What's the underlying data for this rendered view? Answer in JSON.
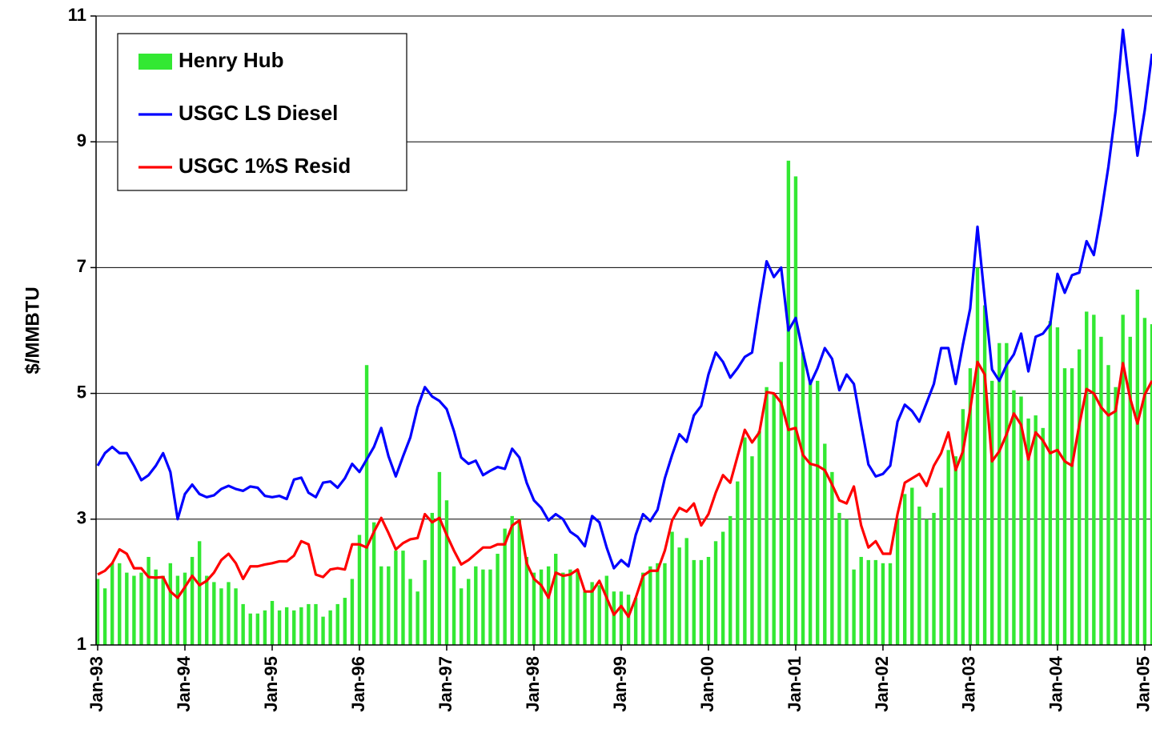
{
  "chart_data": {
    "type": "bar-line",
    "ylabel": "$/MMBTU",
    "legend": "upper left",
    "grid": true,
    "ylim": [
      1,
      11
    ],
    "yticks": [
      1,
      3,
      5,
      7,
      9,
      11
    ],
    "categories": [
      "Jan-93",
      null,
      null,
      null,
      null,
      null,
      null,
      null,
      null,
      null,
      null,
      null,
      "Jan-94",
      null,
      null,
      null,
      null,
      null,
      null,
      null,
      null,
      null,
      null,
      null,
      "Jan-95",
      null,
      null,
      null,
      null,
      null,
      null,
      null,
      null,
      null,
      null,
      null,
      "Jan-96",
      null,
      null,
      null,
      null,
      null,
      null,
      null,
      null,
      null,
      null,
      null,
      "Jan-97",
      null,
      null,
      null,
      null,
      null,
      null,
      null,
      null,
      null,
      null,
      null,
      "Jan-98",
      null,
      null,
      null,
      null,
      null,
      null,
      null,
      null,
      null,
      null,
      null,
      "Jan-99",
      null,
      null,
      null,
      null,
      null,
      null,
      null,
      null,
      null,
      null,
      null,
      "Jan-00",
      null,
      null,
      null,
      null,
      null,
      null,
      null,
      null,
      null,
      null,
      null,
      "Jan-01",
      null,
      null,
      null,
      null,
      null,
      null,
      null,
      null,
      null,
      null,
      null,
      "Jan-02",
      null,
      null,
      null,
      null,
      null,
      null,
      null,
      null,
      null,
      null,
      null,
      "Jan-03",
      null,
      null,
      null,
      null,
      null,
      null,
      null,
      null,
      null,
      null,
      null,
      "Jan-04",
      null,
      null,
      null,
      null,
      null,
      null,
      null,
      null,
      null,
      null,
      null,
      "Jan-05",
      null
    ],
    "series": [
      {
        "name": "Henry Hub",
        "type": "bar",
        "color": "#33e833",
        "values": [
          2.05,
          1.9,
          2.3,
          2.3,
          2.15,
          2.1,
          2.15,
          2.4,
          2.2,
          2.1,
          2.3,
          2.1,
          2.15,
          2.4,
          2.65,
          2.1,
          2.0,
          1.9,
          2.0,
          1.9,
          1.65,
          1.5,
          1.5,
          1.55,
          1.7,
          1.55,
          1.6,
          1.55,
          1.6,
          1.65,
          1.65,
          1.45,
          1.55,
          1.65,
          1.75,
          2.05,
          2.75,
          5.45,
          2.95,
          2.25,
          2.25,
          2.5,
          2.5,
          2.05,
          1.85,
          2.35,
          3.1,
          3.75,
          3.3,
          2.25,
          1.9,
          2.05,
          2.25,
          2.2,
          2.2,
          2.45,
          2.85,
          3.05,
          3.0,
          2.4,
          2.15,
          2.2,
          2.25,
          2.45,
          2.15,
          2.2,
          2.2,
          1.85,
          2.0,
          1.95,
          2.1,
          1.85,
          1.85,
          1.8,
          1.75,
          2.15,
          2.25,
          2.3,
          2.3,
          2.8,
          2.55,
          2.7,
          2.35,
          2.35,
          2.4,
          2.65,
          2.8,
          3.05,
          3.6,
          4.3,
          4.0,
          4.4,
          5.1,
          5.0,
          5.5,
          8.7,
          8.45,
          5.65,
          5.2,
          5.2,
          4.2,
          3.75,
          3.1,
          3.0,
          2.2,
          2.4,
          2.35,
          2.35,
          2.3,
          2.3,
          3.0,
          3.4,
          3.5,
          3.2,
          3.0,
          3.1,
          3.5,
          4.1,
          4.0,
          4.75,
          5.4,
          7.0,
          6.4,
          5.2,
          5.8,
          5.8,
          5.05,
          4.95,
          4.6,
          4.65,
          4.45,
          6.15,
          6.05,
          5.4,
          5.4,
          5.7,
          6.3,
          6.25,
          5.9,
          5.45,
          5.1,
          6.25,
          5.9,
          6.65,
          6.2,
          6.1
        ]
      },
      {
        "name": "USGC LS Diesel",
        "type": "line",
        "color": "#0000ff",
        "values": [
          3.85,
          4.05,
          4.15,
          4.05,
          4.05,
          3.85,
          3.62,
          3.7,
          3.85,
          4.05,
          3.75,
          3.0,
          3.4,
          3.55,
          3.4,
          3.35,
          3.38,
          3.48,
          3.53,
          3.48,
          3.45,
          3.52,
          3.5,
          3.37,
          3.35,
          3.37,
          3.32,
          3.63,
          3.66,
          3.42,
          3.35,
          3.58,
          3.6,
          3.5,
          3.65,
          3.88,
          3.75,
          3.95,
          4.15,
          4.45,
          4.0,
          3.68,
          4.0,
          4.3,
          4.78,
          5.1,
          4.95,
          4.88,
          4.75,
          4.4,
          3.98,
          3.88,
          3.93,
          3.7,
          3.77,
          3.83,
          3.8,
          4.12,
          3.98,
          3.58,
          3.3,
          3.18,
          2.98,
          3.08,
          3.0,
          2.8,
          2.72,
          2.57,
          3.05,
          2.95,
          2.55,
          2.22,
          2.35,
          2.25,
          2.75,
          3.08,
          2.97,
          3.15,
          3.65,
          4.02,
          4.35,
          4.23,
          4.65,
          4.8,
          5.3,
          5.65,
          5.5,
          5.25,
          5.4,
          5.58,
          5.65,
          6.4,
          7.1,
          6.85,
          7.0,
          6.0,
          6.2,
          5.65,
          5.15,
          5.4,
          5.72,
          5.55,
          5.05,
          5.3,
          5.15,
          4.5,
          3.87,
          3.68,
          3.72,
          3.85,
          4.55,
          4.82,
          4.72,
          4.55,
          4.85,
          5.15,
          5.72,
          5.72,
          5.15,
          5.78,
          6.35,
          7.65,
          6.5,
          5.38,
          5.2,
          5.45,
          5.62,
          5.95,
          5.35,
          5.9,
          5.95,
          6.1,
          6.9,
          6.6,
          6.88,
          6.92,
          7.42,
          7.2,
          7.85,
          8.6,
          9.5,
          10.78,
          9.8,
          8.78,
          9.5,
          10.4
        ]
      },
      {
        "name": "USGC 1%S Resid",
        "type": "line",
        "color": "#ff0000",
        "values": [
          2.12,
          2.18,
          2.3,
          2.52,
          2.45,
          2.22,
          2.22,
          2.08,
          2.07,
          2.08,
          1.85,
          1.75,
          1.92,
          2.1,
          1.95,
          2.02,
          2.15,
          2.35,
          2.45,
          2.3,
          2.05,
          2.25,
          2.25,
          2.28,
          2.3,
          2.33,
          2.33,
          2.42,
          2.65,
          2.6,
          2.12,
          2.08,
          2.2,
          2.22,
          2.2,
          2.6,
          2.6,
          2.55,
          2.8,
          3.02,
          2.78,
          2.52,
          2.62,
          2.68,
          2.7,
          3.08,
          2.95,
          3.02,
          2.75,
          2.5,
          2.28,
          2.35,
          2.45,
          2.55,
          2.55,
          2.6,
          2.6,
          2.9,
          2.98,
          2.3,
          2.05,
          1.95,
          1.75,
          2.15,
          2.1,
          2.12,
          2.2,
          1.85,
          1.85,
          2.02,
          1.75,
          1.48,
          1.62,
          1.45,
          1.75,
          2.1,
          2.18,
          2.18,
          2.5,
          2.98,
          3.18,
          3.12,
          3.25,
          2.9,
          3.08,
          3.42,
          3.7,
          3.58,
          4.0,
          4.42,
          4.22,
          4.38,
          5.02,
          5.0,
          4.85,
          4.42,
          4.45,
          4.02,
          3.88,
          3.85,
          3.78,
          3.55,
          3.3,
          3.25,
          3.52,
          2.9,
          2.55,
          2.65,
          2.45,
          2.45,
          3.08,
          3.58,
          3.65,
          3.72,
          3.53,
          3.85,
          4.05,
          4.38,
          3.78,
          4.08,
          4.75,
          5.5,
          5.3,
          3.92,
          4.08,
          4.35,
          4.68,
          4.5,
          3.95,
          4.38,
          4.25,
          4.05,
          4.1,
          3.92,
          3.85,
          4.5,
          5.07,
          5.0,
          4.78,
          4.65,
          4.72,
          5.48,
          4.92,
          4.52,
          4.98,
          5.2
        ]
      }
    ]
  }
}
